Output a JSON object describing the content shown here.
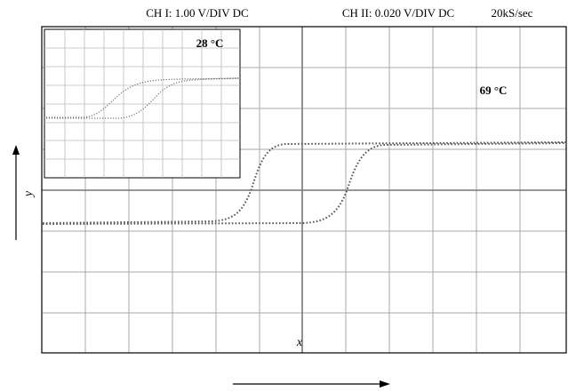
{
  "header": {
    "ch1": "CH I: 1.00 V/DIV DC",
    "ch2": "CH II: 0.020 V/DIV DC",
    "rate": "20kS/sec"
  },
  "inset": {
    "label": "28 °C"
  },
  "main": {
    "label": "69 °C"
  },
  "axes": {
    "x": "x",
    "y": "y"
  }
}
